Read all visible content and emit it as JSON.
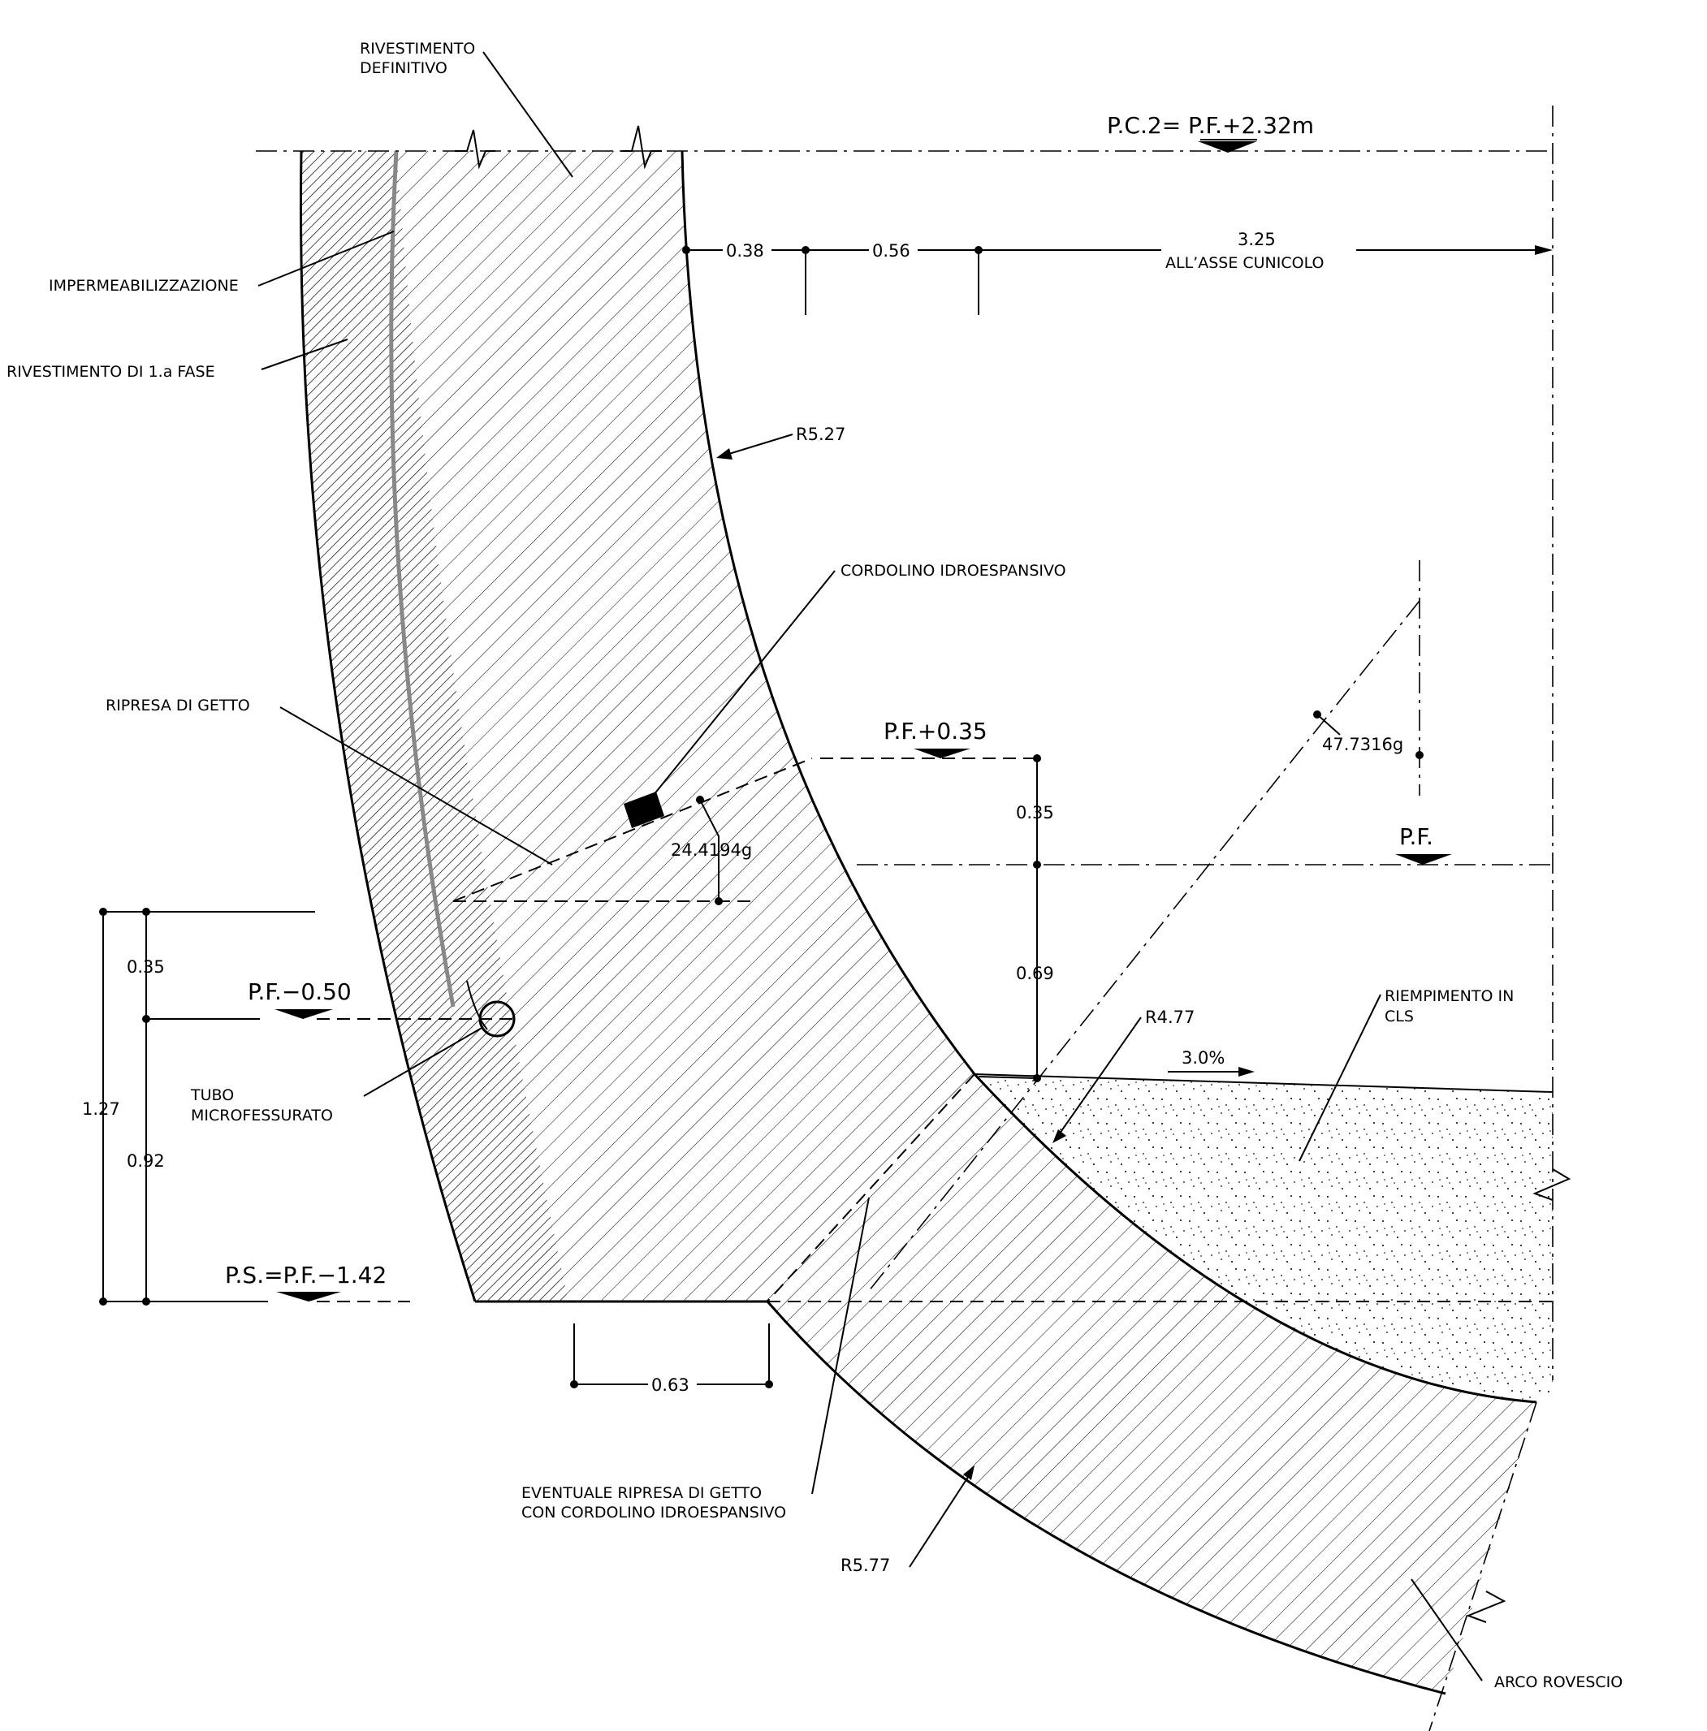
{
  "labels": {
    "rivestimento_definitivo_1": "RIVESTIMENTO",
    "rivestimento_definitivo_2": "DEFINITIVO",
    "impermeabilizzazione": "IMPERMEABILIZZAZIONE",
    "rivestimento_prima_fase": "RIVESTIMENTO  DI  1.a  FASE",
    "cordolino": "CORDOLINO  IDROESPANSIVO",
    "ripresa_getto": "RIPRESA  DI  GETTO",
    "tubo_1": "TUBO",
    "tubo_2": "MICROFESSURATO",
    "riempimento_1": "RIEMPIMENTO  IN",
    "riempimento_2": "CLS",
    "eventuale_1": "EVENTUALE  RIPRESA  DI  GETTO",
    "eventuale_2": "CON  CORDOLINO  IDROESPANSIVO",
    "arco_rovescio": "ARCO  ROVESCIO"
  },
  "levels": {
    "pc2": "P.C.2=  P.F.+2.32m",
    "pf_plus": "P.F.+0.35",
    "pf": "P.F.",
    "pf_minus": "P.F.−0.50",
    "ps": "P.S.=P.F.−1.42"
  },
  "dimensions": {
    "d038": "0.38",
    "d056": "0.56",
    "d325": "3.25",
    "asse": "ALL’ASSE  CUNICOLO",
    "r527": "R5.27",
    "r477": "R4.77",
    "r577": "R5.77",
    "angle1": "24.4194g",
    "angle2": "47.7316g",
    "v035a": "0.35",
    "v069": "0.69",
    "slope": "3.0%",
    "l035": "0.35",
    "l127": "1.27",
    "l092": "0.92",
    "d063": "0.63"
  }
}
